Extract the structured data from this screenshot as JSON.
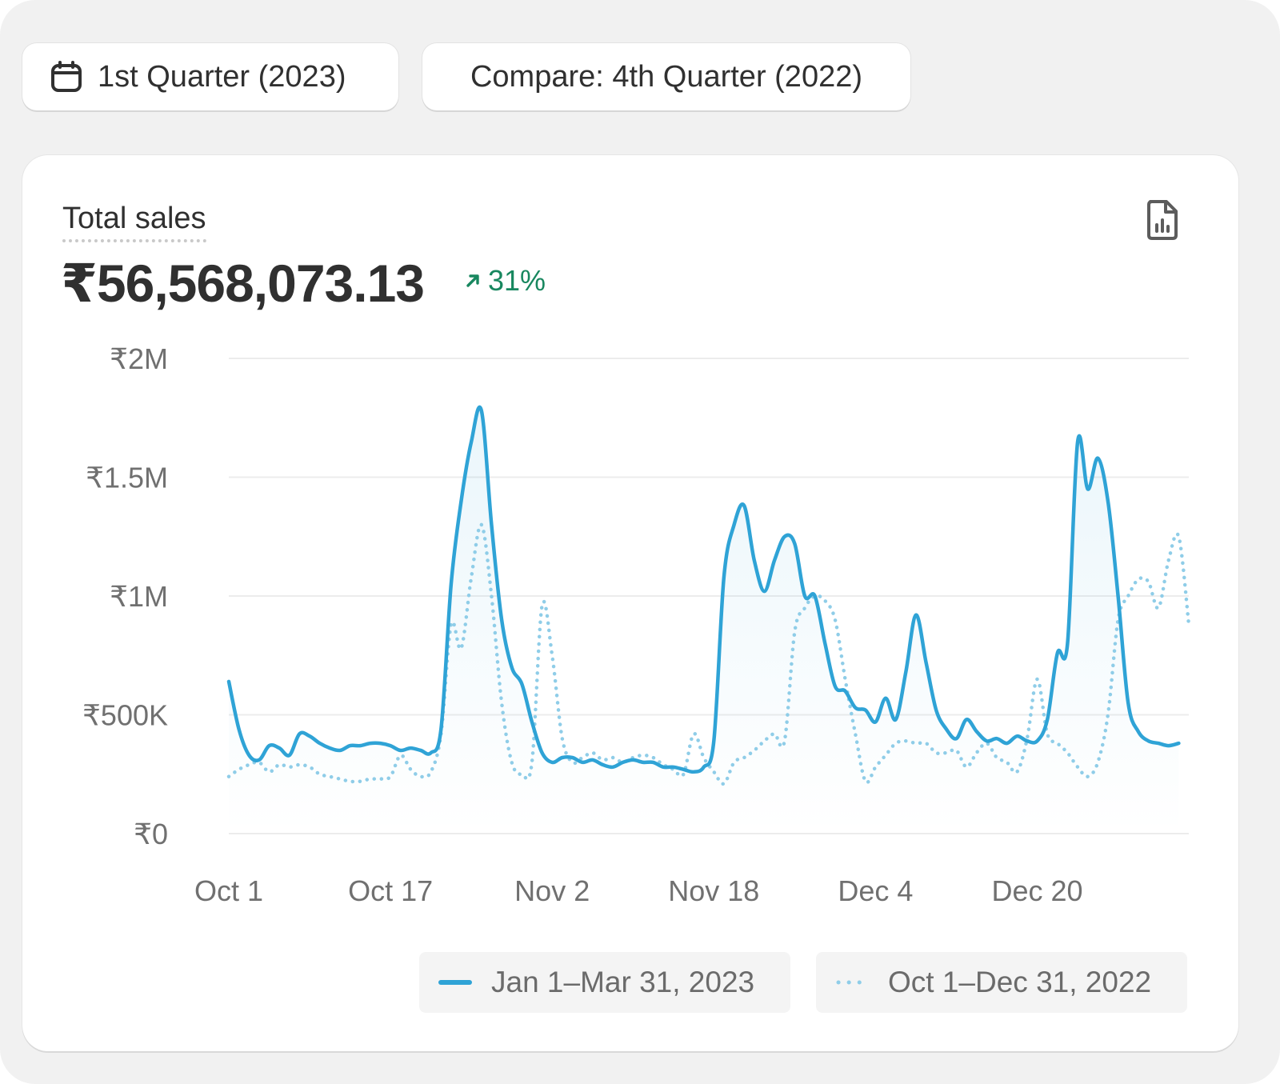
{
  "filters": {
    "period_label": "1st Quarter (2023)",
    "compare_label": "Compare: 4th Quarter (2022)"
  },
  "metric": {
    "title": "Total sales",
    "value": "₹56,568,073.13",
    "change": "31%",
    "change_color": "#18875f"
  },
  "icons": {
    "calendar": "calendar-icon",
    "export": "file-chart-icon",
    "trend": "arrow-up-right-icon"
  },
  "colors": {
    "primary": "#2fa3d6",
    "comparison": "#8fcde8",
    "grid": "#ececec"
  },
  "chart_data": {
    "type": "line",
    "title": "",
    "xlabel": "",
    "ylabel": "",
    "ylim": [
      0,
      2000000
    ],
    "yticks": [
      0,
      500000,
      1000000,
      1500000,
      2000000
    ],
    "ytick_labels": [
      "₹0",
      "₹500K",
      "₹1M",
      "₹1.5M",
      "₹2M"
    ],
    "xtick_labels": [
      "Oct 1",
      "Oct 17",
      "Nov 2",
      "Nov 18",
      "Dec 4",
      "Dec 20"
    ],
    "xtick_index": [
      0,
      16,
      32,
      48,
      64,
      80
    ],
    "grid": true,
    "legend_position": "bottom-right",
    "series": [
      {
        "name": "Jan 1–Mar 31, 2023",
        "style": "solid",
        "values": [
          640000,
          440000,
          330000,
          310000,
          370000,
          360000,
          330000,
          420000,
          410000,
          380000,
          360000,
          350000,
          370000,
          370000,
          380000,
          380000,
          370000,
          350000,
          360000,
          350000,
          340000,
          440000,
          1050000,
          1400000,
          1650000,
          1780000,
          1300000,
          900000,
          700000,
          630000,
          470000,
          340000,
          300000,
          320000,
          320000,
          300000,
          310000,
          290000,
          280000,
          300000,
          310000,
          300000,
          300000,
          280000,
          280000,
          270000,
          260000,
          280000,
          390000,
          1080000,
          1300000,
          1380000,
          1150000,
          1020000,
          1150000,
          1250000,
          1220000,
          1000000,
          1000000,
          800000,
          620000,
          600000,
          530000,
          520000,
          470000,
          570000,
          480000,
          680000,
          920000,
          720000,
          520000,
          440000,
          400000,
          480000,
          430000,
          390000,
          400000,
          380000,
          410000,
          390000,
          390000,
          480000,
          760000,
          800000,
          1650000,
          1450000,
          1580000,
          1400000,
          1000000,
          550000,
          430000,
          390000,
          380000,
          370000,
          380000
        ],
        "last_index": 94
      },
      {
        "name": "Oct 1–Dec 31, 2022",
        "style": "dotted",
        "values": [
          240000,
          270000,
          290000,
          300000,
          260000,
          290000,
          280000,
          290000,
          280000,
          250000,
          240000,
          230000,
          220000,
          220000,
          230000,
          230000,
          240000,
          330000,
          270000,
          240000,
          260000,
          420000,
          880000,
          780000,
          1080000,
          1300000,
          1000000,
          550000,
          300000,
          250000,
          300000,
          960000,
          750000,
          400000,
          300000,
          320000,
          340000,
          310000,
          320000,
          300000,
          320000,
          330000,
          320000,
          290000,
          270000,
          250000,
          420000,
          320000,
          260000,
          210000,
          300000,
          320000,
          350000,
          390000,
          420000,
          390000,
          850000,
          950000,
          1000000,
          980000,
          900000,
          650000,
          420000,
          220000,
          280000,
          330000,
          380000,
          390000,
          380000,
          380000,
          340000,
          340000,
          350000,
          280000,
          340000,
          380000,
          320000,
          300000,
          260000,
          400000,
          650000,
          420000,
          380000,
          340000,
          280000,
          240000,
          300000,
          500000,
          900000,
          1000000,
          1070000,
          1060000,
          950000,
          1150000,
          1250000,
          880000
        ]
      }
    ]
  }
}
